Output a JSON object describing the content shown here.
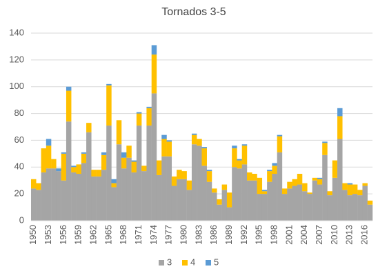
{
  "chart_data": {
    "type": "stacked_bar",
    "title": "Tornados 3-5",
    "categories": [
      "1950",
      null,
      null,
      "1953",
      null,
      null,
      "1956",
      null,
      null,
      "1959",
      null,
      null,
      "1962",
      null,
      null,
      "1965",
      null,
      null,
      "1968",
      null,
      null,
      "1971",
      null,
      null,
      "1974",
      null,
      null,
      "1977",
      null,
      null,
      "1980",
      null,
      null,
      "1983",
      null,
      null,
      "1986",
      null,
      null,
      "1989",
      null,
      null,
      "1992",
      null,
      null,
      "1995",
      null,
      null,
      "1998",
      null,
      null,
      "2001",
      null,
      null,
      "2004",
      null,
      null,
      "2007",
      null,
      null,
      "2010",
      null,
      null,
      "2013",
      null,
      null,
      "2016",
      null
    ],
    "series": [
      {
        "name": "3",
        "color": "#a5a5a5",
        "values": [
          24,
          23,
          36,
          39,
          39,
          37,
          30,
          74,
          36,
          35,
          43,
          66,
          33,
          33,
          38,
          71,
          25,
          57,
          39,
          47,
          36,
          71,
          37,
          71,
          95,
          34,
          48,
          48,
          26,
          31,
          31,
          23,
          57,
          56,
          41,
          29,
          21,
          12,
          23,
          10,
          40,
          39,
          42,
          30,
          30,
          20,
          20,
          29,
          35,
          51,
          20,
          24,
          26,
          27,
          22,
          20,
          30,
          27,
          49,
          19,
          32,
          61,
          23,
          19,
          20,
          19,
          26,
          12
        ]
      },
      {
        "name": "4",
        "color": "#ffc000",
        "values": [
          7,
          5,
          18,
          17,
          7,
          0,
          20,
          23,
          4,
          7,
          7,
          7,
          5,
          5,
          11,
          30,
          3,
          18,
          8,
          9,
          8,
          9,
          4,
          13,
          29,
          11,
          13,
          11,
          7,
          7,
          6,
          7,
          7,
          5,
          13,
          8,
          3,
          4,
          4,
          11,
          14,
          6,
          14,
          6,
          5,
          12,
          2,
          8,
          6,
          12,
          4,
          5,
          5,
          8,
          6,
          1,
          2,
          4,
          9,
          3,
          13,
          17,
          5,
          8,
          7,
          4,
          2,
          3
        ]
      },
      {
        "name": "5",
        "color": "#5b9bd5",
        "values": [
          0,
          0,
          0,
          5,
          0,
          2,
          1,
          3,
          1,
          0,
          1,
          0,
          0,
          0,
          2,
          1,
          3,
          0,
          4,
          0,
          1,
          1,
          0,
          1,
          7,
          0,
          3,
          1,
          0,
          0,
          0,
          0,
          1,
          0,
          1,
          1,
          0,
          0,
          0,
          0,
          2,
          1,
          1,
          0,
          0,
          0,
          1,
          1,
          2,
          1,
          0,
          0,
          0,
          0,
          0,
          0,
          0,
          1,
          1,
          0,
          0,
          6,
          0,
          1,
          0,
          0,
          0,
          0
        ]
      }
    ],
    "ylim": [
      0,
      140
    ],
    "yticks": [
      0,
      20,
      40,
      60,
      80,
      100,
      120,
      140
    ],
    "grid": true,
    "legend": "bottom"
  }
}
